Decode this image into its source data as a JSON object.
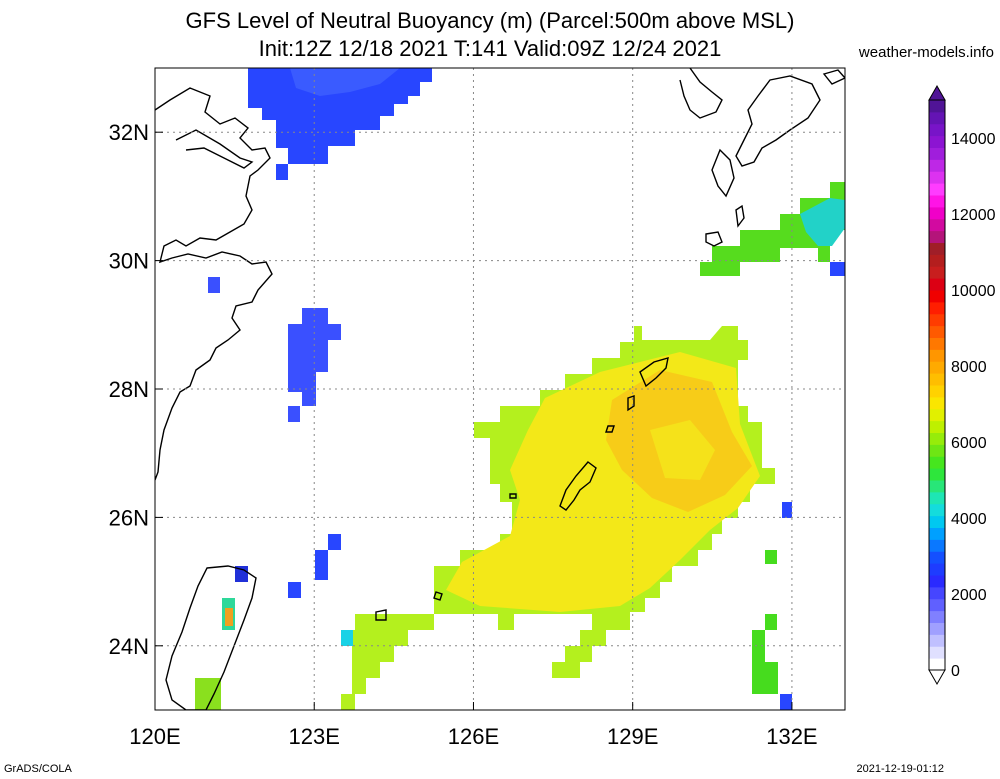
{
  "header": {
    "title_line1": "GFS Level of Neutral Buoyancy (m) (Parcel:500m above MSL)",
    "title_line2": "Init:12Z 12/18 2021 T:141 Valid:09Z 12/24 2021",
    "site": "weather-models.info"
  },
  "map": {
    "lon_range": [
      120,
      133
    ],
    "lat_range": [
      23,
      33
    ],
    "lon_ticks": [
      {
        "value": 120,
        "label": "120E"
      },
      {
        "value": 123,
        "label": "123E"
      },
      {
        "value": 126,
        "label": "126E"
      },
      {
        "value": 129,
        "label": "129E"
      },
      {
        "value": 132,
        "label": "132E"
      }
    ],
    "lat_ticks": [
      {
        "value": 24,
        "label": "24N"
      },
      {
        "value": 26,
        "label": "26N"
      },
      {
        "value": 28,
        "label": "28N"
      },
      {
        "value": 30,
        "label": "30N"
      },
      {
        "value": 32,
        "label": "32N"
      }
    ],
    "gridlines": true,
    "colors": {
      "low": "#2846ff",
      "cyan": "#19d2e6",
      "green": "#56dc1e",
      "yellowgreen": "#b4f01e",
      "yellow": "#f5ee10",
      "orange_yellow": "#f7c814"
    }
  },
  "colorbar": {
    "labels": [
      "0",
      "2000",
      "4000",
      "6000",
      "8000",
      "10000",
      "12000",
      "14000"
    ],
    "max": 15000,
    "colors": [
      "#ffffff",
      "#e0e0ff",
      "#c0c0ff",
      "#a0a0ff",
      "#8080ff",
      "#6060ff",
      "#4646ff",
      "#2a2aff",
      "#1e3cff",
      "#1450ff",
      "#0a78ff",
      "#00a0ff",
      "#00c8f0",
      "#14dcdc",
      "#1ee6b4",
      "#28e678",
      "#2ee63c",
      "#46e61e",
      "#6ee614",
      "#96ec0a",
      "#bef000",
      "#e1f000",
      "#fae600",
      "#ffd200",
      "#ffbe00",
      "#ffaa00",
      "#ff9600",
      "#ff7800",
      "#ff5a00",
      "#ff3c00",
      "#ff1e00",
      "#f00000",
      "#dc0014",
      "#c81e1e",
      "#b41e1e",
      "#a01e28",
      "#b4147a",
      "#d20aa0",
      "#f000c8",
      "#ff14e6",
      "#ff3cff",
      "#dc32f0",
      "#be28e6",
      "#a01edc",
      "#8c14d2",
      "#7814c8",
      "#6414b4",
      "#501496"
    ]
  },
  "footer": {
    "left": "GrADS/COLA",
    "right": "2021-12-19-01:12"
  }
}
